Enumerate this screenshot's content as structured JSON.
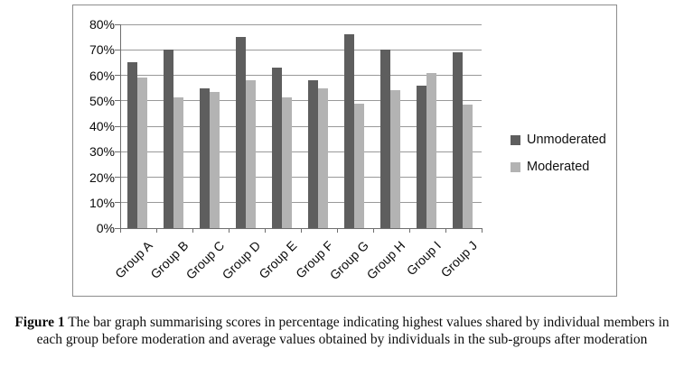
{
  "caption": {
    "label": "Figure 1",
    "text": " The bar graph summarising scores in percentage indicating highest values shared by individual members in each group before moderation and average values obtained by individuals in the sub-groups after moderation"
  },
  "chart_data": {
    "type": "bar",
    "title": "",
    "xlabel": "",
    "ylabel": "",
    "categories": [
      "Group A",
      "Group B",
      "Group C",
      "Group D",
      "Group E",
      "Group F",
      "Group G",
      "Group H",
      "Group I",
      "Group J"
    ],
    "series": [
      {
        "name": "Unmoderated",
        "color": "#5e5e5e",
        "values": [
          65,
          70,
          55,
          75,
          63,
          58,
          76,
          70,
          56,
          69
        ]
      },
      {
        "name": "Moderated",
        "color": "#b3b3b3",
        "values": [
          59,
          51.5,
          53.5,
          58,
          51.5,
          55,
          49,
          54,
          61,
          48.5
        ]
      }
    ],
    "ylim": [
      0,
      80
    ],
    "ytick_step": 10,
    "ytick_labels": [
      "0%",
      "10%",
      "20%",
      "30%",
      "40%",
      "50%",
      "60%",
      "70%",
      "80%"
    ],
    "grid": "horizontal",
    "legend_position": "right",
    "bar_orientation": "vertical"
  },
  "colors": {
    "background": "#ffffff",
    "frame_border": "#8d8d8d",
    "gridline": "#999999",
    "axis": "#6e6e6e",
    "text": "#0a0a0a"
  }
}
